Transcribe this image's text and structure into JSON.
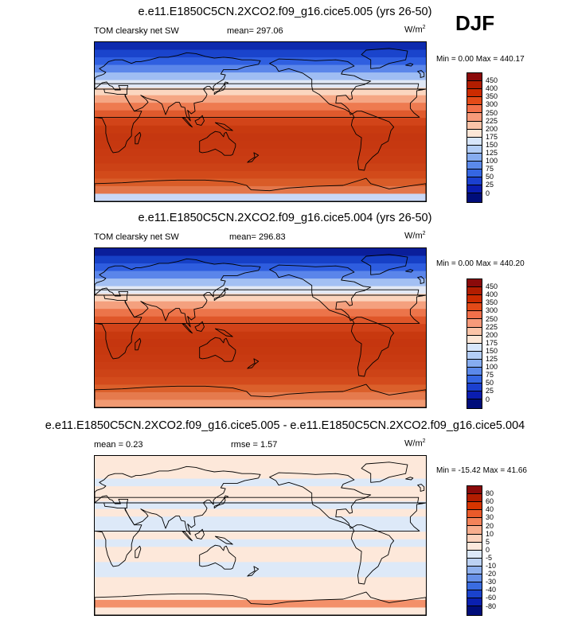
{
  "season": "DJF",
  "panels": [
    {
      "title": "e.e11.E1850C5CN.2XCO2.f09_g16.cice5.005 (yrs 26-50)",
      "variable": "TOM clearsky net SW",
      "stat1": "mean= 297.06",
      "stat2": "",
      "units_base": "W/m",
      "units_sup": "2",
      "minmax": "Min =   0.00 Max = 440.17",
      "levels": [
        "450",
        "400",
        "350",
        "300",
        "250",
        "225",
        "200",
        "175",
        "150",
        "125",
        "100",
        "75",
        "50",
        "25",
        "0"
      ],
      "colors": [
        "#8b0a0a",
        "#b21d00",
        "#cc2b00",
        "#e34a18",
        "#f2704a",
        "#f79a7a",
        "#fcc4a8",
        "#fde6d6",
        "#d8e6fb",
        "#b3cdf6",
        "#86acf0",
        "#5b89ea",
        "#3566e2",
        "#1b40cf",
        "#0a1db0",
        "#000d7a"
      ],
      "lat_colors": [
        "#0d2aae",
        "#1a44cc",
        "#2f5fe0",
        "#5b86ea",
        "#9fbdf3",
        "#dfe7f5",
        "#fbd6c0",
        "#f5a684",
        "#ee7a50",
        "#e05a2d",
        "#d24419",
        "#c83a10",
        "#c53710",
        "#c63810",
        "#c83a12",
        "#c93c13",
        "#cc4216",
        "#d24a1a",
        "#d95c28",
        "#e3764a",
        "#c9d8f6"
      ]
    },
    {
      "title": "e.e11.E1850C5CN.2XCO2.f09_g16.cice5.004 (yrs 26-50)",
      "variable": "TOM clearsky net SW",
      "stat1": "mean= 296.83",
      "stat2": "",
      "units_base": "W/m",
      "units_sup": "2",
      "minmax": "Min =   0.00 Max = 440.20",
      "levels": [
        "450",
        "400",
        "350",
        "300",
        "250",
        "225",
        "200",
        "175",
        "150",
        "125",
        "100",
        "75",
        "50",
        "25",
        "0"
      ],
      "colors": [
        "#8b0a0a",
        "#b21d00",
        "#cc2b00",
        "#e34a18",
        "#f2704a",
        "#f79a7a",
        "#fcc4a8",
        "#fde6d6",
        "#d8e6fb",
        "#b3cdf6",
        "#86acf0",
        "#5b89ea",
        "#3566e2",
        "#1b40cf",
        "#0a1db0",
        "#000d7a"
      ],
      "lat_colors": [
        "#0a1e9a",
        "#1640c6",
        "#2e5ddf",
        "#5a85ea",
        "#a3c0f3",
        "#e2e8f4",
        "#fbd4bd",
        "#f4a07e",
        "#ec744a",
        "#df5629",
        "#d14218",
        "#c8390f",
        "#c5360f",
        "#c6380f",
        "#c83a11",
        "#ca3d14",
        "#cd4317",
        "#d34b1c",
        "#db602b",
        "#e57a4d",
        "#f19a72"
      ]
    },
    {
      "title": "e.e11.E1850C5CN.2XCO2.f09_g16.cice5.005 - e.e11.E1850C5CN.2XCO2.f09_g16.cice5.004",
      "variable": "mean =  0.23",
      "stat1": "rmse =  1.57",
      "stat2": "",
      "units_base": "W/m",
      "units_sup": "2",
      "minmax": "Min = -15.42 Max =  41.66",
      "levels": [
        "80",
        "60",
        "40",
        "30",
        "20",
        "10",
        "5",
        "0",
        "-5",
        "-10",
        "-20",
        "-30",
        "-40",
        "-60",
        "-80"
      ],
      "colors": [
        "#8b0a0a",
        "#b21d00",
        "#d63500",
        "#ea5a2a",
        "#f3835a",
        "#f8ae8e",
        "#fcd2bc",
        "#fde9dc",
        "#dce8f8",
        "#bcd2f4",
        "#8fb1ee",
        "#6690e8",
        "#3a6ce0",
        "#1a42cc",
        "#0a20b0",
        "#000d7a"
      ],
      "lat_colors": [
        "#fde8da",
        "#fde8da",
        "#fde8da",
        "#dde9f8",
        "#fde8da",
        "#fde8da",
        "#dde9f8",
        "#fde8da",
        "#dde9f8",
        "#dde9f8",
        "#fde8da",
        "#dde9f8",
        "#fde8da",
        "#fde8da",
        "#dde9f8",
        "#dde9f8",
        "#fde8da",
        "#fde8da",
        "#fde8da",
        "#f3906a",
        "#fde8da"
      ]
    }
  ]
}
